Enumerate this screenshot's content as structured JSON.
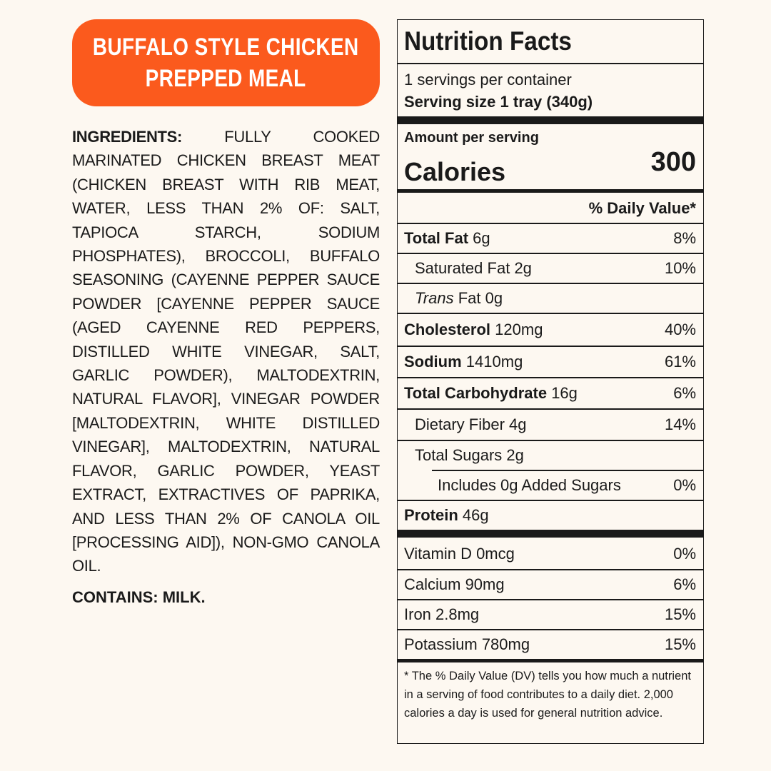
{
  "banner": {
    "line1": "BUFFALO STYLE CHICKEN",
    "line2": "PREPPED MEAL"
  },
  "ingredients": {
    "label": "INGREDIENTS:",
    "text": " FULLY COOKED MARINATED CHICKEN BREAST MEAT (CHICKEN BREAST WITH RIB MEAT, WATER, LESS THAN 2% OF: SALT, TAPIOCA STARCH, SODIUM PHOSPHATES), BROCCOLI, BUFFALO SEASONING (CAYENNE PEPPER SAUCE POWDER [CAYENNE PEPPER SAUCE (AGED CAYENNE RED PEPPERS, DISTILLED WHITE VINEGAR, SALT, GARLIC POWDER), MALTODEXTRIN, NATURAL FLAVOR], VINEGAR POWDER [MALTODEXTRIN, WHITE DISTILLED VINEGAR], MALTODEXTRIN, NATURAL FLAVOR, GARLIC POWDER, YEAST EXTRACT, EXTRACTIVES OF PAPRIKA, AND LESS THAN 2% OF CANOLA OIL [PROCESSING AID]), NON-GMO CANOLA OIL.",
    "contains": "CONTAINS: MILK."
  },
  "nutrition": {
    "title": "Nutrition Facts",
    "servings": "1 servings per container",
    "serving_size_label": "Serving size",
    "serving_size_value": "1 tray (340g)",
    "amount_per_serving": "Amount per serving",
    "calories_label": "Calories",
    "calories_value": "300",
    "dv_header": "% Daily Value*",
    "rows": {
      "total_fat": {
        "label": "Total Fat",
        "amount": "6g",
        "dv": "8%"
      },
      "saturated_fat": {
        "label": "Saturated Fat",
        "amount": "2g",
        "dv": "10%"
      },
      "trans_fat": {
        "label": "Trans",
        "label2": "Fat",
        "amount": "0g",
        "dv": ""
      },
      "cholesterol": {
        "label": "Cholesterol",
        "amount": "120mg",
        "dv": "40%"
      },
      "sodium": {
        "label": "Sodium",
        "amount": "1410mg",
        "dv": "61%"
      },
      "total_carb": {
        "label": "Total Carbohydrate",
        "amount": "16g",
        "dv": "6%"
      },
      "fiber": {
        "label": "Dietary Fiber",
        "amount": "4g",
        "dv": "14%"
      },
      "total_sugars": {
        "label": "Total Sugars",
        "amount": "2g",
        "dv": ""
      },
      "added_sugars": {
        "label": "Includes 0g Added Sugars",
        "dv": "0%"
      },
      "protein": {
        "label": "Protein",
        "amount": "46g",
        "dv": ""
      },
      "vitamin_d": {
        "label": "Vitamin D 0mcg",
        "dv": "0%"
      },
      "calcium": {
        "label": "Calcium 90mg",
        "dv": "6%"
      },
      "iron": {
        "label": "Iron 2.8mg",
        "dv": "15%"
      },
      "potassium": {
        "label": "Potassium 780mg",
        "dv": "15%"
      }
    },
    "footnote": "* The % Daily Value (DV) tells you how much a nutrient in a serving of food contributes to a daily diet. 2,000 calories a day is used for general nutrition advice."
  }
}
